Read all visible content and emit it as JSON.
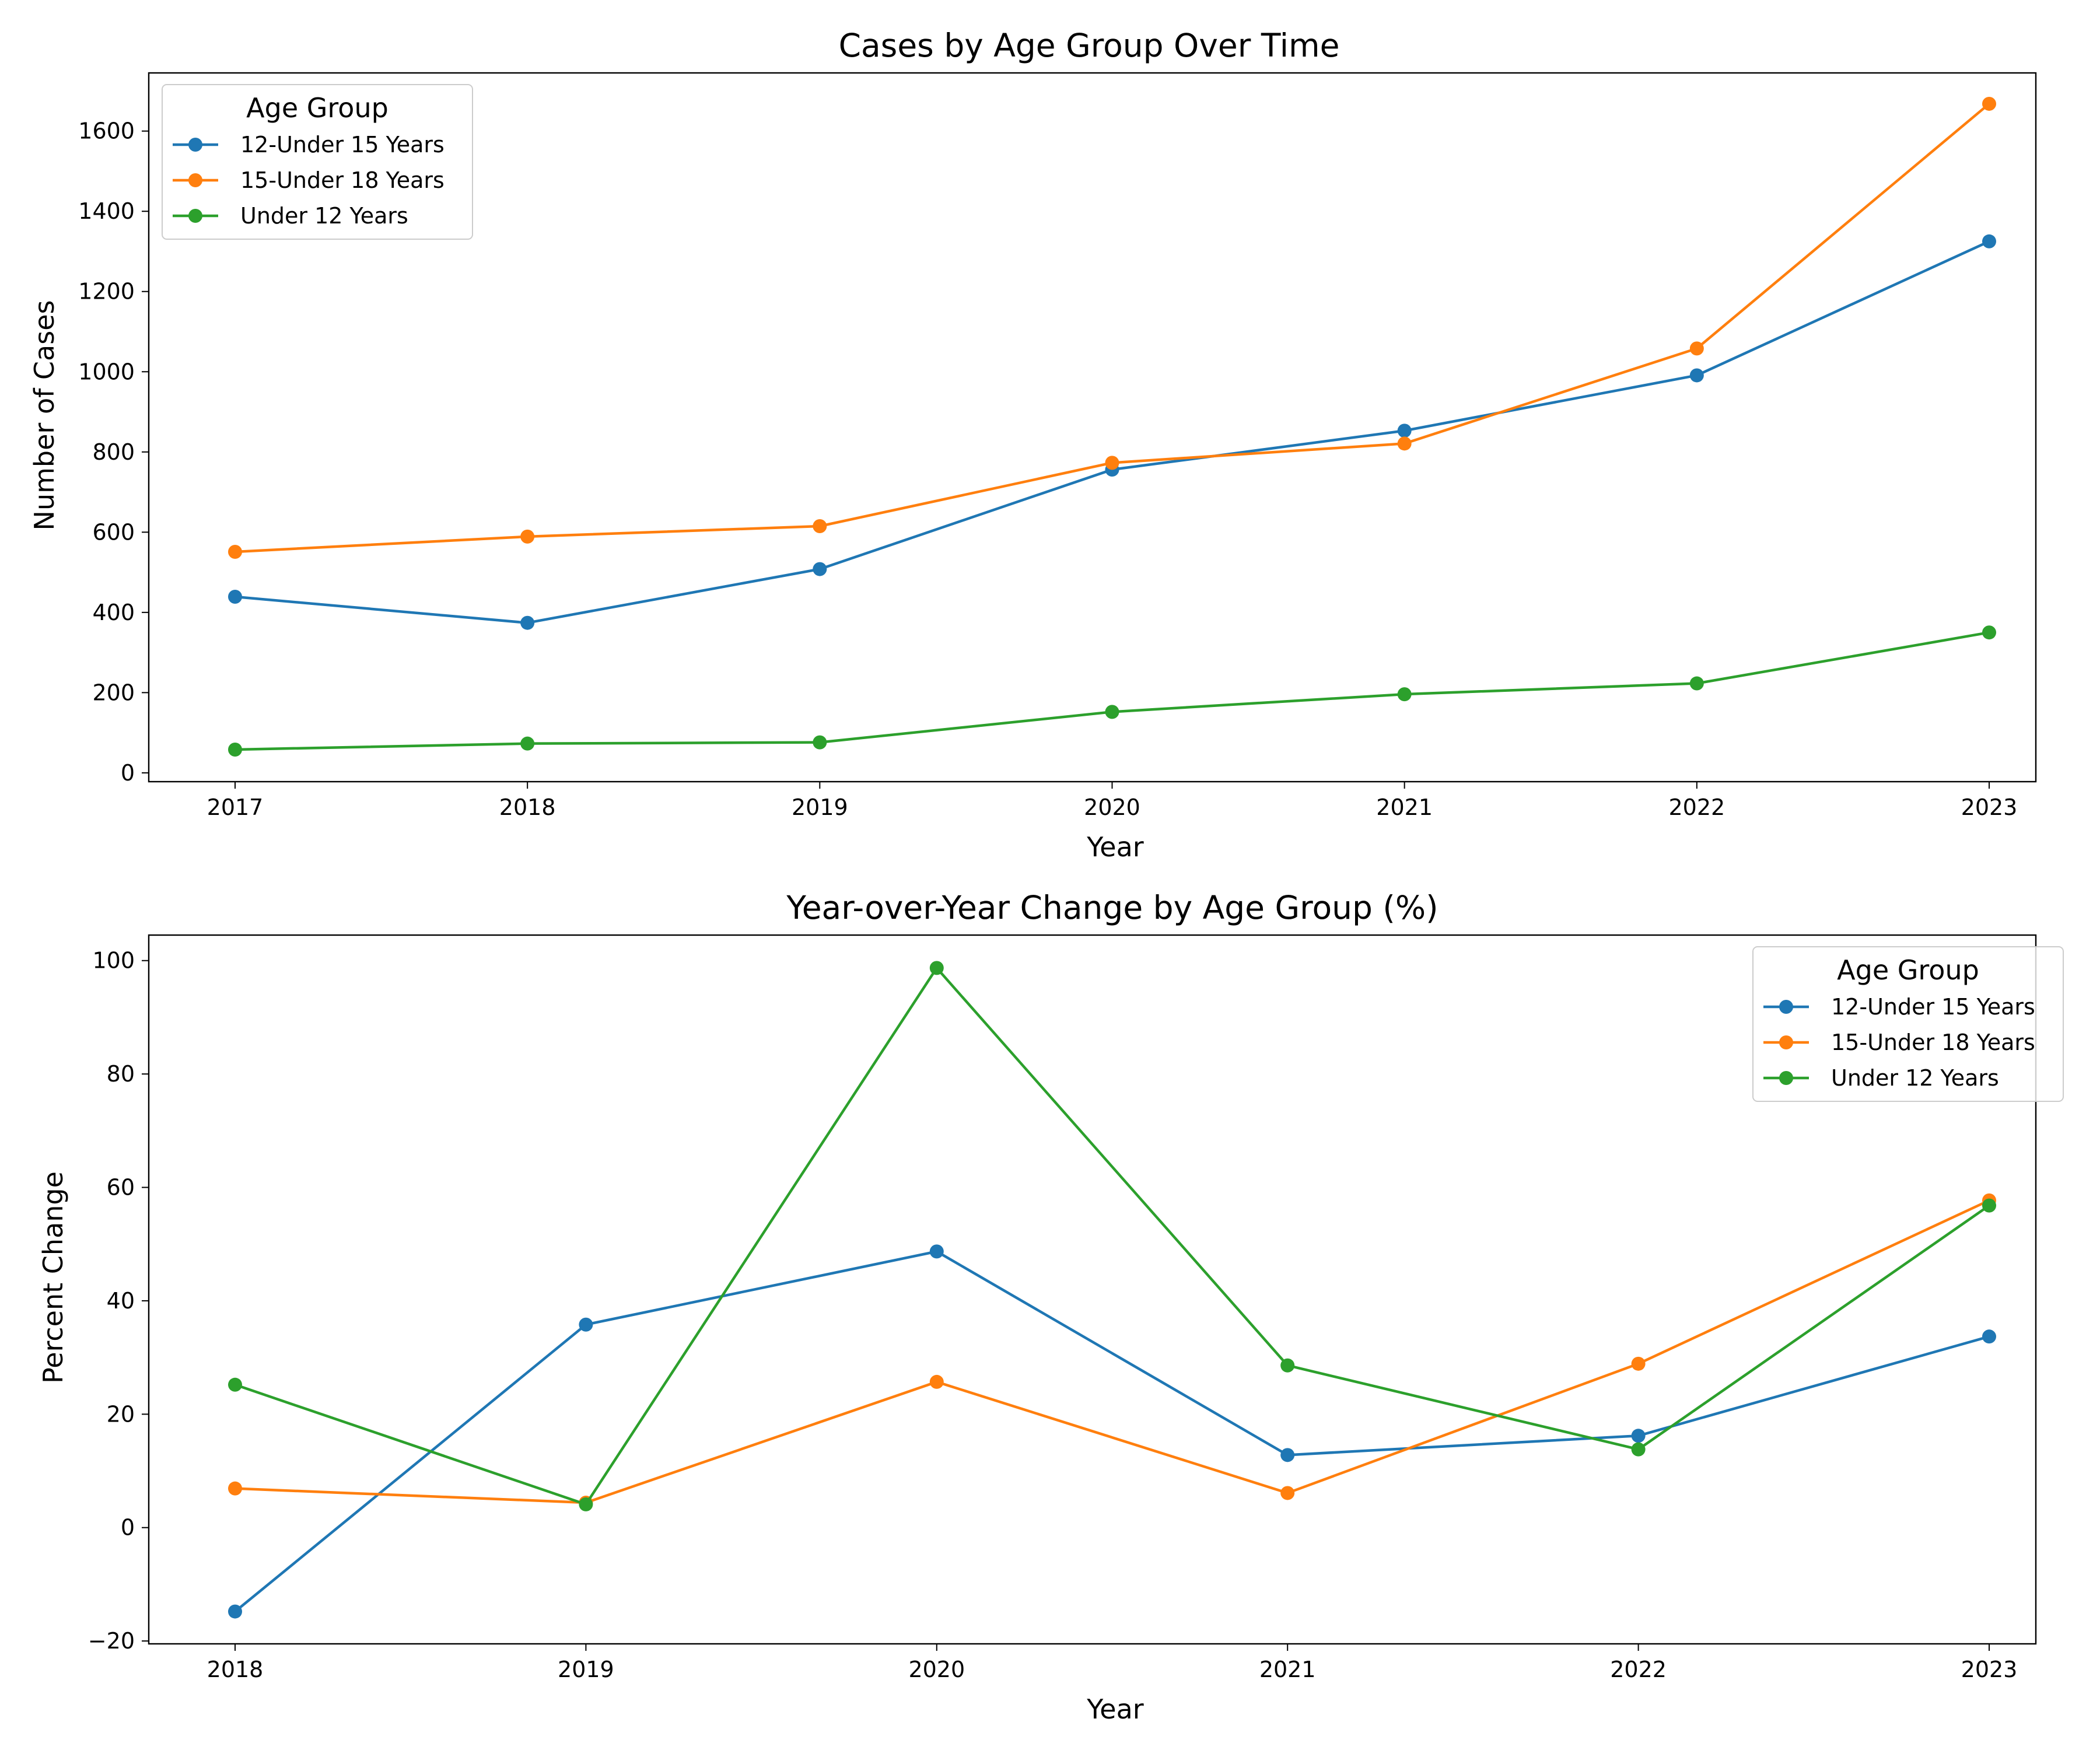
{
  "chart_data": [
    {
      "type": "line",
      "title": "Cases by Age Group Over Time",
      "xlabel": "Year",
      "ylabel": "Number of Cases",
      "x": [
        2017,
        2018,
        2019,
        2020,
        2021,
        2022,
        2023
      ],
      "x_ticks": [
        "2017",
        "2018",
        "2019",
        "2020",
        "2021",
        "2022",
        "2023"
      ],
      "ylim": [
        -22,
        1745
      ],
      "y_ticks": [
        0,
        200,
        400,
        600,
        800,
        1000,
        1200,
        1400,
        1600
      ],
      "y_tick_labels": [
        "0",
        "200",
        "400",
        "600",
        "800",
        "1000",
        "1200",
        "1400",
        "1600"
      ],
      "grid": false,
      "legend": {
        "title": "Age Group",
        "position": "top-left"
      },
      "series": [
        {
          "name": "12-Under 15 Years",
          "color": "#1f77b4",
          "values": [
            439,
            374,
            508,
            756,
            853,
            991,
            1325
          ]
        },
        {
          "name": "15-Under 18 Years",
          "color": "#ff7f0e",
          "values": [
            551,
            589,
            615,
            773,
            821,
            1058,
            1668
          ]
        },
        {
          "name": "Under 12 Years",
          "color": "#2ca02c",
          "values": [
            58,
            73,
            76,
            152,
            196,
            223,
            350
          ]
        }
      ]
    },
    {
      "type": "line",
      "title": "Year-over-Year Change by Age Group (%)",
      "xlabel": "Year",
      "ylabel": "Percent Change",
      "x": [
        2018,
        2019,
        2020,
        2021,
        2022,
        2023
      ],
      "x_ticks": [
        "2018",
        "2019",
        "2020",
        "2021",
        "2022",
        "2023"
      ],
      "ylim": [
        -20.5,
        104.5
      ],
      "y_ticks": [
        -20,
        0,
        20,
        40,
        60,
        80,
        100
      ],
      "y_tick_labels": [
        "−20",
        "0",
        "20",
        "40",
        "60",
        "80",
        "100"
      ],
      "grid": false,
      "legend": {
        "title": "Age Group",
        "position": "top-right"
      },
      "series": [
        {
          "name": "12-Under 15 Years",
          "color": "#1f77b4",
          "values": [
            -14.8,
            35.8,
            48.7,
            12.8,
            16.2,
            33.7
          ]
        },
        {
          "name": "15-Under 18 Years",
          "color": "#ff7f0e",
          "values": [
            6.9,
            4.4,
            25.7,
            6.1,
            28.9,
            57.7
          ]
        },
        {
          "name": "Under 12 Years",
          "color": "#2ca02c",
          "values": [
            25.2,
            4.1,
            98.7,
            28.6,
            13.8,
            56.8
          ]
        }
      ]
    }
  ]
}
